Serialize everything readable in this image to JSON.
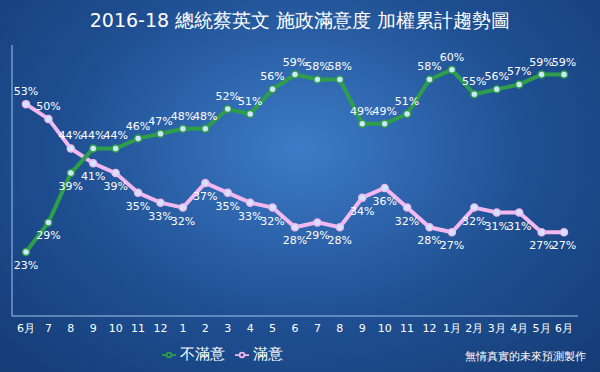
{
  "chart_data": {
    "type": "line",
    "title": "2016-18 總統蔡英文 施政滿意度 加權累計趨勢圖",
    "categories": [
      "6月",
      "7",
      "8",
      "9",
      "10",
      "11",
      "12",
      "1",
      "2",
      "3",
      "4",
      "5",
      "6",
      "7",
      "8",
      "9",
      "10",
      "11",
      "12",
      "1月",
      "2月",
      "3月",
      "4月",
      "5月",
      "6月"
    ],
    "series": [
      {
        "name": "滿意",
        "color": "#f2b8f0",
        "marker": "circle",
        "values": [
          53,
          50,
          44,
          41,
          39,
          35,
          33,
          32,
          37,
          35,
          33,
          32,
          28,
          29,
          28,
          34,
          36,
          32,
          28,
          27,
          32,
          31,
          31,
          27,
          27
        ],
        "value_labels": [
          "53%",
          "50%",
          "44%",
          "41%",
          "39%",
          "35%",
          "33%",
          "32%",
          "37%",
          "35%",
          "33%",
          "32%",
          "28%",
          "29%",
          "28%",
          "34%",
          "36%",
          "32%",
          "28%",
          "27%",
          "32%",
          "31%",
          "31%",
          "27%",
          "27%"
        ]
      },
      {
        "name": "不滿意",
        "color": "#2e9e4a",
        "marker": "circle",
        "values": [
          23,
          29,
          39,
          44,
          44,
          46,
          47,
          48,
          48,
          52,
          51,
          56,
          59,
          58,
          58,
          49,
          49,
          51,
          58,
          60,
          55,
          56,
          57,
          59,
          59
        ],
        "value_labels": [
          "23%",
          "29%",
          "39%",
          "44%",
          "44%",
          "46%",
          "47%",
          "48%",
          "48%",
          "52%",
          "51%",
          "56%",
          "59%",
          "58%",
          "58%",
          "49%",
          "49%",
          "51%",
          "58%",
          "60%",
          "55%",
          "56%",
          "57%",
          "59%",
          "59%"
        ]
      }
    ],
    "ylim": [
      10,
      65
    ],
    "tick_labels": "x",
    "grid": false,
    "legend": "bottom",
    "data_labels": true,
    "annotations": [
      "無情真實的未來預測製作"
    ]
  }
}
